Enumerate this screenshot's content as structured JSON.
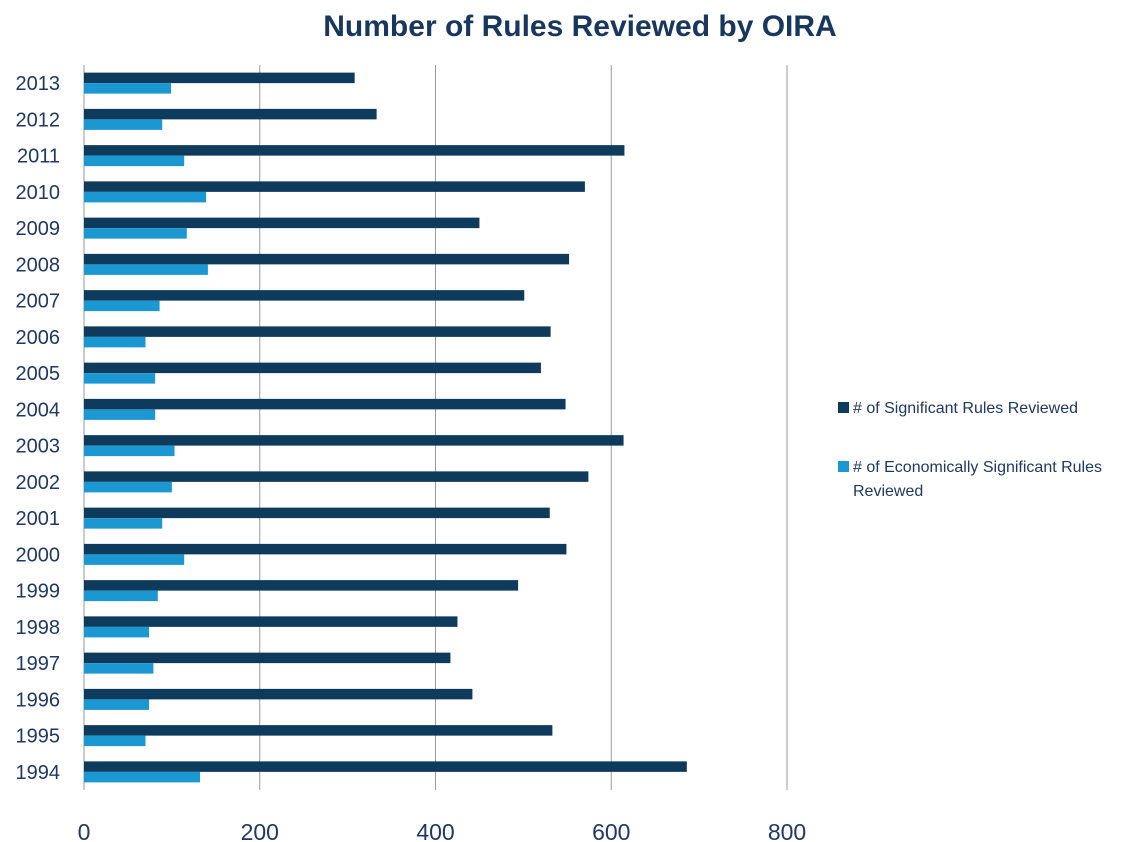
{
  "chart_data": {
    "type": "bar",
    "orientation": "horizontal",
    "title": "Number of Rules Reviewed by OIRA",
    "xlabel": "",
    "ylabel": "",
    "xlim": [
      0,
      800
    ],
    "xticks": [
      0,
      200,
      400,
      600,
      800
    ],
    "grid": "vertical",
    "legend_position": "right",
    "categories": [
      "2013",
      "2012",
      "2011",
      "2010",
      "2009",
      "2008",
      "2007",
      "2006",
      "2005",
      "2004",
      "2003",
      "2002",
      "2001",
      "2000",
      "1999",
      "1998",
      "1997",
      "1996",
      "1995",
      "1994"
    ],
    "series": [
      {
        "name": "# of Significant Rules Reviewed",
        "color": "#0e3a5c",
        "values": [
          308,
          333,
          615,
          570,
          450,
          552,
          501,
          531,
          520,
          548,
          614,
          574,
          530,
          549,
          494,
          425,
          417,
          442,
          533,
          686
        ]
      },
      {
        "name": "# of Economically Significant Rules Reviewed",
        "color": "#1b98d1",
        "values": [
          99,
          89,
          114,
          139,
          117,
          141,
          86,
          70,
          81,
          81,
          103,
          100,
          89,
          114,
          84,
          74,
          79,
          74,
          70,
          132
        ]
      }
    ]
  }
}
